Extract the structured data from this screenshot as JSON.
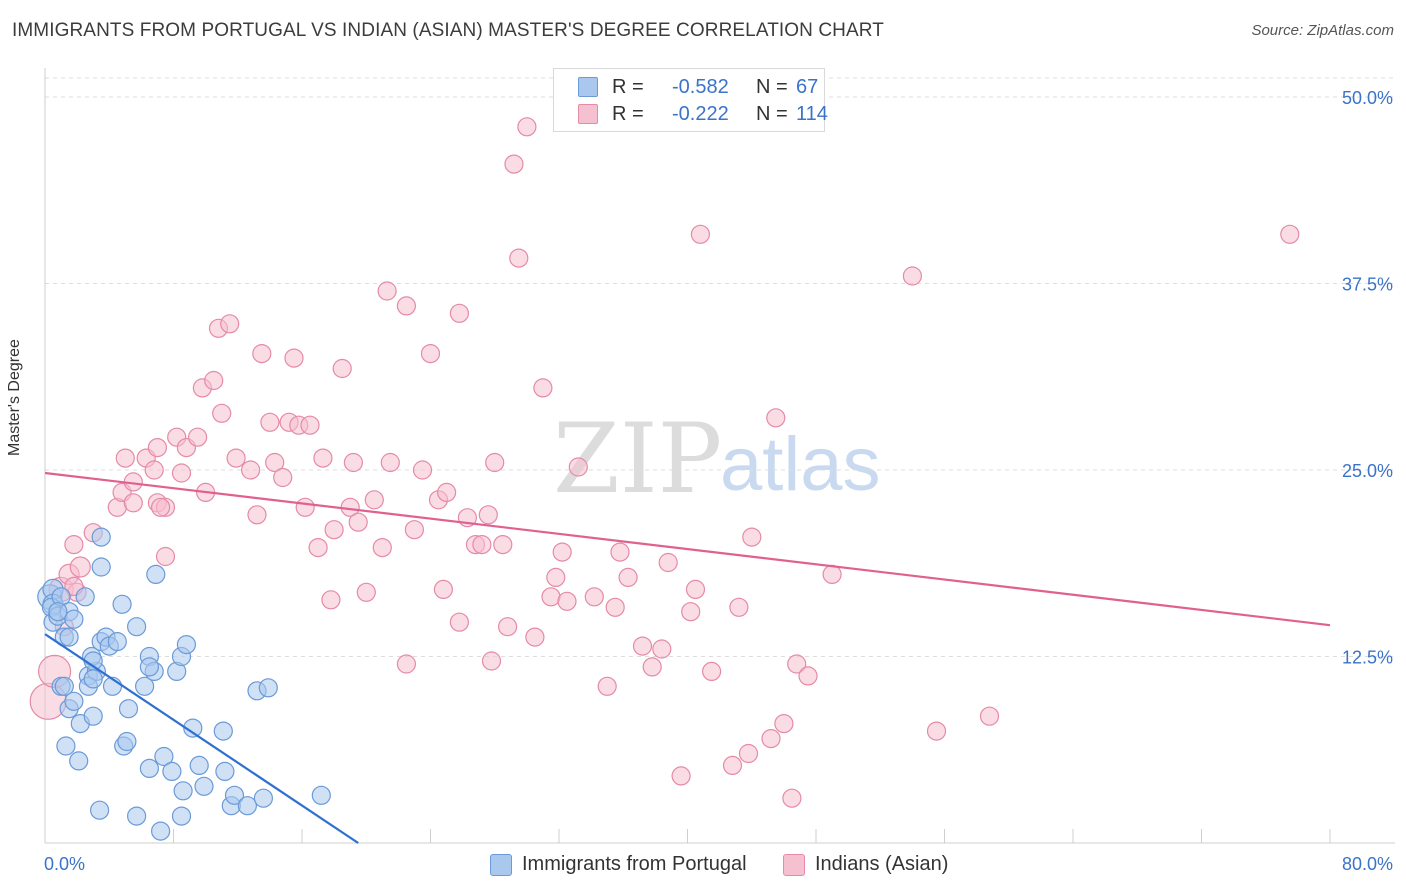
{
  "title": "IMMIGRANTS FROM PORTUGAL VS INDIAN (ASIAN) MASTER'S DEGREE CORRELATION CHART",
  "source": "Source: ZipAtlas.com",
  "watermark": {
    "zip": "ZIP",
    "atlas": "atlas"
  },
  "colors": {
    "blue_fill": "#aac8ee",
    "blue_stroke": "#6a9ad8",
    "blue_line": "#2f6fd0",
    "pink_fill": "#f5c0d0",
    "pink_stroke": "#e58aa8",
    "pink_line": "#e0608f",
    "axis_text": "#3b73c8",
    "grid": "#dddddd"
  },
  "legend_top": [
    {
      "r_label": "R =",
      "r_value": "-0.582",
      "n_label": "N =",
      "n_value": "67",
      "color": "#aac8ee",
      "border": "#6a9ad8"
    },
    {
      "r_label": "R =",
      "r_value": "-0.222",
      "n_label": "N =",
      "n_value": "114",
      "color": "#f5c0d0",
      "border": "#e58aa8"
    }
  ],
  "legend_bottom": [
    {
      "label": "Immigrants from Portugal",
      "color": "#aac8ee",
      "border": "#6a9ad8"
    },
    {
      "label": "Indians (Asian)",
      "color": "#f5c0d0",
      "border": "#e58aa8"
    }
  ],
  "chart_data": {
    "type": "scatter",
    "title": "IMMIGRANTS FROM PORTUGAL VS INDIAN (ASIAN) MASTER'S DEGREE CORRELATION CHART",
    "xlabel": "",
    "ylabel": "Master's Degree",
    "xlim": [
      0,
      80
    ],
    "ylim": [
      0,
      50
    ],
    "x_tick_labels": [
      "0.0%",
      "80.0%"
    ],
    "y_ticks": [
      12.5,
      25.0,
      37.5,
      50.0
    ],
    "y_tick_labels": [
      "12.5%",
      "25.0%",
      "37.5%",
      "50.0%"
    ],
    "grid": true,
    "series": [
      {
        "name": "Immigrants from Portugal",
        "r": -0.582,
        "n": 67,
        "trend": {
          "x": [
            0,
            19.5
          ],
          "y": [
            14.0,
            0.0
          ]
        },
        "points": [
          [
            0.3,
            16.5,
            12
          ],
          [
            0.5,
            17.0,
            10
          ],
          [
            0.5,
            16.0,
            10
          ],
          [
            0.4,
            15.8,
            9
          ],
          [
            0.5,
            14.8,
            9
          ],
          [
            0.8,
            15.2,
            9
          ],
          [
            1.0,
            16.5,
            9
          ],
          [
            1.2,
            13.8,
            9
          ],
          [
            1.5,
            13.8,
            9
          ],
          [
            1.5,
            15.5,
            9
          ],
          [
            1.8,
            15.0,
            9
          ],
          [
            2.5,
            16.5,
            9
          ],
          [
            3.5,
            18.5,
            9
          ],
          [
            3.5,
            20.5,
            9
          ],
          [
            4.8,
            16.0,
            9
          ],
          [
            1.0,
            10.5,
            9
          ],
          [
            1.2,
            10.5,
            9
          ],
          [
            1.5,
            9.0,
            9
          ],
          [
            1.8,
            9.5,
            9
          ],
          [
            2.2,
            8.0,
            9
          ],
          [
            3.0,
            8.5,
            9
          ],
          [
            1.3,
            6.5,
            9
          ],
          [
            2.1,
            5.5,
            9
          ],
          [
            2.7,
            11.2,
            9
          ],
          [
            3.2,
            11.5,
            9
          ],
          [
            2.9,
            12.5,
            9
          ],
          [
            3.5,
            13.5,
            9
          ],
          [
            3.8,
            13.8,
            9
          ],
          [
            4.0,
            13.2,
            9
          ],
          [
            4.5,
            13.5,
            9
          ],
          [
            5.7,
            14.5,
            9
          ],
          [
            2.7,
            10.5,
            9
          ],
          [
            3.0,
            11.0,
            9
          ],
          [
            4.2,
            10.5,
            9
          ],
          [
            5.2,
            9.0,
            9
          ],
          [
            6.2,
            10.5,
            9
          ],
          [
            6.5,
            12.5,
            9
          ],
          [
            6.8,
            11.5,
            9
          ],
          [
            8.2,
            11.5,
            9
          ],
          [
            8.5,
            12.5,
            9
          ],
          [
            8.8,
            13.3,
            9
          ],
          [
            6.5,
            11.8,
            9
          ],
          [
            6.9,
            18.0,
            9
          ],
          [
            4.9,
            6.5,
            9
          ],
          [
            5.1,
            6.8,
            9
          ],
          [
            6.5,
            5.0,
            9
          ],
          [
            7.4,
            5.8,
            9
          ],
          [
            7.9,
            4.8,
            9
          ],
          [
            8.6,
            3.5,
            9
          ],
          [
            9.2,
            7.7,
            9
          ],
          [
            9.6,
            5.2,
            9
          ],
          [
            9.9,
            3.8,
            9
          ],
          [
            11.2,
            4.8,
            9
          ],
          [
            11.1,
            7.5,
            9
          ],
          [
            11.6,
            2.5,
            9
          ],
          [
            11.8,
            3.2,
            9
          ],
          [
            12.6,
            2.5,
            9
          ],
          [
            13.2,
            10.2,
            9
          ],
          [
            13.9,
            10.4,
            9
          ],
          [
            13.6,
            3.0,
            9
          ],
          [
            17.2,
            3.2,
            9
          ],
          [
            3.4,
            2.2,
            9
          ],
          [
            5.7,
            1.8,
            9
          ],
          [
            7.2,
            0.8,
            9
          ],
          [
            8.5,
            1.8,
            9
          ],
          [
            3.0,
            12.2,
            9
          ],
          [
            0.8,
            15.5,
            9
          ]
        ]
      },
      {
        "name": "Indians (Asian)",
        "r": -0.222,
        "n": 114,
        "trend": {
          "x": [
            0,
            80
          ],
          "y": [
            24.8,
            14.6
          ]
        },
        "points": [
          [
            0.2,
            9.5,
            18
          ],
          [
            0.6,
            11.5,
            16
          ],
          [
            1.0,
            17.0,
            12
          ],
          [
            1.5,
            18.0,
            10
          ],
          [
            2.2,
            18.5,
            10
          ],
          [
            1.8,
            20.0,
            9
          ],
          [
            3.0,
            20.8,
            9
          ],
          [
            1.2,
            14.5,
            9
          ],
          [
            2.0,
            16.8,
            9
          ],
          [
            1.8,
            17.2,
            9
          ],
          [
            4.5,
            22.5,
            9
          ],
          [
            4.8,
            23.5,
            9
          ],
          [
            5.0,
            25.8,
            9
          ],
          [
            5.5,
            22.8,
            9
          ],
          [
            5.5,
            24.2,
            9
          ],
          [
            6.3,
            25.8,
            9
          ],
          [
            6.8,
            25.0,
            9
          ],
          [
            7.0,
            26.5,
            9
          ],
          [
            7.0,
            22.8,
            9
          ],
          [
            7.5,
            22.5,
            9
          ],
          [
            7.2,
            22.5,
            9
          ],
          [
            7.5,
            19.2,
            9
          ],
          [
            8.2,
            27.2,
            9
          ],
          [
            8.5,
            24.8,
            9
          ],
          [
            8.8,
            26.5,
            9
          ],
          [
            9.5,
            27.2,
            9
          ],
          [
            10.0,
            23.5,
            9
          ],
          [
            9.8,
            30.5,
            9
          ],
          [
            10.5,
            31.0,
            9
          ],
          [
            11.0,
            28.8,
            9
          ],
          [
            10.8,
            34.5,
            9
          ],
          [
            11.5,
            34.8,
            9
          ],
          [
            11.9,
            25.8,
            9
          ],
          [
            12.8,
            25.0,
            9
          ],
          [
            13.2,
            22.0,
            9
          ],
          [
            13.5,
            32.8,
            9
          ],
          [
            14.0,
            28.2,
            9
          ],
          [
            14.3,
            25.5,
            9
          ],
          [
            14.8,
            24.5,
            9
          ],
          [
            15.2,
            28.2,
            9
          ],
          [
            15.5,
            32.5,
            9
          ],
          [
            15.8,
            28.0,
            9
          ],
          [
            16.5,
            28.0,
            9
          ],
          [
            16.2,
            22.5,
            9
          ],
          [
            17.0,
            19.8,
            9
          ],
          [
            17.3,
            25.8,
            9
          ],
          [
            17.8,
            16.3,
            9
          ],
          [
            18.0,
            21.0,
            9
          ],
          [
            18.5,
            31.8,
            9
          ],
          [
            19.0,
            22.5,
            9
          ],
          [
            19.2,
            25.5,
            9
          ],
          [
            19.5,
            21.5,
            9
          ],
          [
            20.0,
            16.8,
            9
          ],
          [
            20.5,
            23.0,
            9
          ],
          [
            21.0,
            19.8,
            9
          ],
          [
            21.5,
            25.5,
            9
          ],
          [
            21.3,
            37.0,
            9
          ],
          [
            22.5,
            36.0,
            9
          ],
          [
            23.0,
            21.0,
            9
          ],
          [
            22.5,
            12.0,
            9
          ],
          [
            23.5,
            25.0,
            9
          ],
          [
            24.0,
            32.8,
            9
          ],
          [
            24.5,
            23.0,
            9
          ],
          [
            25.0,
            23.5,
            9
          ],
          [
            24.8,
            17.0,
            9
          ],
          [
            25.8,
            35.5,
            9
          ],
          [
            25.8,
            14.8,
            9
          ],
          [
            26.3,
            21.8,
            9
          ],
          [
            26.8,
            20.0,
            9
          ],
          [
            27.2,
            20.0,
            9
          ],
          [
            27.6,
            22.0,
            9
          ],
          [
            27.8,
            12.2,
            9
          ],
          [
            28.0,
            25.5,
            9
          ],
          [
            28.5,
            20.0,
            9
          ],
          [
            28.8,
            14.5,
            9
          ],
          [
            29.5,
            39.2,
            9
          ],
          [
            29.2,
            45.5,
            9
          ],
          [
            30.0,
            48.0,
            9
          ],
          [
            30.5,
            13.8,
            9
          ],
          [
            31.0,
            30.5,
            9
          ],
          [
            31.5,
            16.5,
            9
          ],
          [
            31.8,
            17.8,
            9
          ],
          [
            32.2,
            19.5,
            9
          ],
          [
            32.5,
            16.2,
            9
          ],
          [
            33.2,
            25.2,
            9
          ],
          [
            34.2,
            16.5,
            9
          ],
          [
            35.0,
            10.5,
            9
          ],
          [
            35.5,
            15.8,
            9
          ],
          [
            35.8,
            19.5,
            9
          ],
          [
            36.3,
            17.8,
            9
          ],
          [
            37.2,
            13.2,
            9
          ],
          [
            37.8,
            11.8,
            9
          ],
          [
            38.4,
            13.0,
            9
          ],
          [
            38.8,
            18.8,
            9
          ],
          [
            39.6,
            4.5,
            9
          ],
          [
            40.2,
            15.5,
            9
          ],
          [
            40.5,
            17.0,
            9
          ],
          [
            40.8,
            40.8,
            9
          ],
          [
            41.5,
            11.5,
            9
          ],
          [
            42.8,
            5.2,
            9
          ],
          [
            43.2,
            15.8,
            9
          ],
          [
            43.8,
            6.0,
            9
          ],
          [
            44.0,
            20.5,
            9
          ],
          [
            45.2,
            7.0,
            9
          ],
          [
            45.5,
            28.5,
            9
          ],
          [
            46.0,
            8.0,
            9
          ],
          [
            46.5,
            3.0,
            9
          ],
          [
            46.8,
            12.0,
            9
          ],
          [
            47.5,
            11.2,
            9
          ],
          [
            49.0,
            18.0,
            9
          ],
          [
            54.0,
            38.0,
            9
          ],
          [
            55.5,
            7.5,
            9
          ],
          [
            58.8,
            8.5,
            9
          ],
          [
            77.5,
            40.8,
            9
          ]
        ]
      }
    ]
  }
}
